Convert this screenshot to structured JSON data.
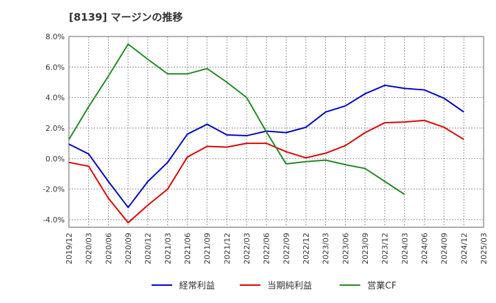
{
  "chart_data": {
    "type": "line",
    "title": "[8139]  マージンの推移",
    "xlabel": "",
    "ylabel": "",
    "x": [
      "2019/12",
      "2020/03",
      "2020/06",
      "2020/09",
      "2020/12",
      "2021/03",
      "2021/06",
      "2021/09",
      "2021/12",
      "2022/03",
      "2022/06",
      "2022/09",
      "2022/12",
      "2023/03",
      "2023/06",
      "2023/09",
      "2023/12",
      "2024/03",
      "2024/06",
      "2024/09",
      "2024/12",
      "2025/03"
    ],
    "y_ticks": [
      "8.0%",
      "6.0%",
      "4.0%",
      "2.0%",
      "0.0%",
      "-2.0%",
      "-4.0%"
    ],
    "ylim": [
      -4.5,
      8.0
    ],
    "grid": true,
    "legend_position": "bottom",
    "series": [
      {
        "name": "経常利益",
        "color": "#0000cc",
        "values": [
          0.95,
          0.3,
          -1.5,
          -3.2,
          -1.5,
          -0.25,
          1.6,
          2.25,
          1.55,
          1.5,
          1.8,
          1.7,
          2.05,
          3.05,
          3.45,
          4.25,
          4.8,
          4.6,
          4.5,
          3.95,
          3.05,
          null
        ]
      },
      {
        "name": "当期純利益",
        "color": "#dd0000",
        "values": [
          -0.25,
          -0.5,
          -2.6,
          -4.2,
          -3.05,
          -2.0,
          0.1,
          0.8,
          0.75,
          1.0,
          1.0,
          0.45,
          0.05,
          0.35,
          0.85,
          1.7,
          2.35,
          2.4,
          2.5,
          2.05,
          1.25,
          null
        ]
      },
      {
        "name": "営業CF",
        "color": "#228822",
        "values": [
          1.25,
          3.4,
          5.4,
          7.5,
          6.5,
          5.55,
          5.55,
          5.9,
          5.0,
          4.0,
          1.75,
          -0.35,
          -0.2,
          -0.1,
          -0.4,
          -0.65,
          -1.5,
          -2.35,
          null,
          null,
          null,
          null
        ]
      }
    ]
  }
}
